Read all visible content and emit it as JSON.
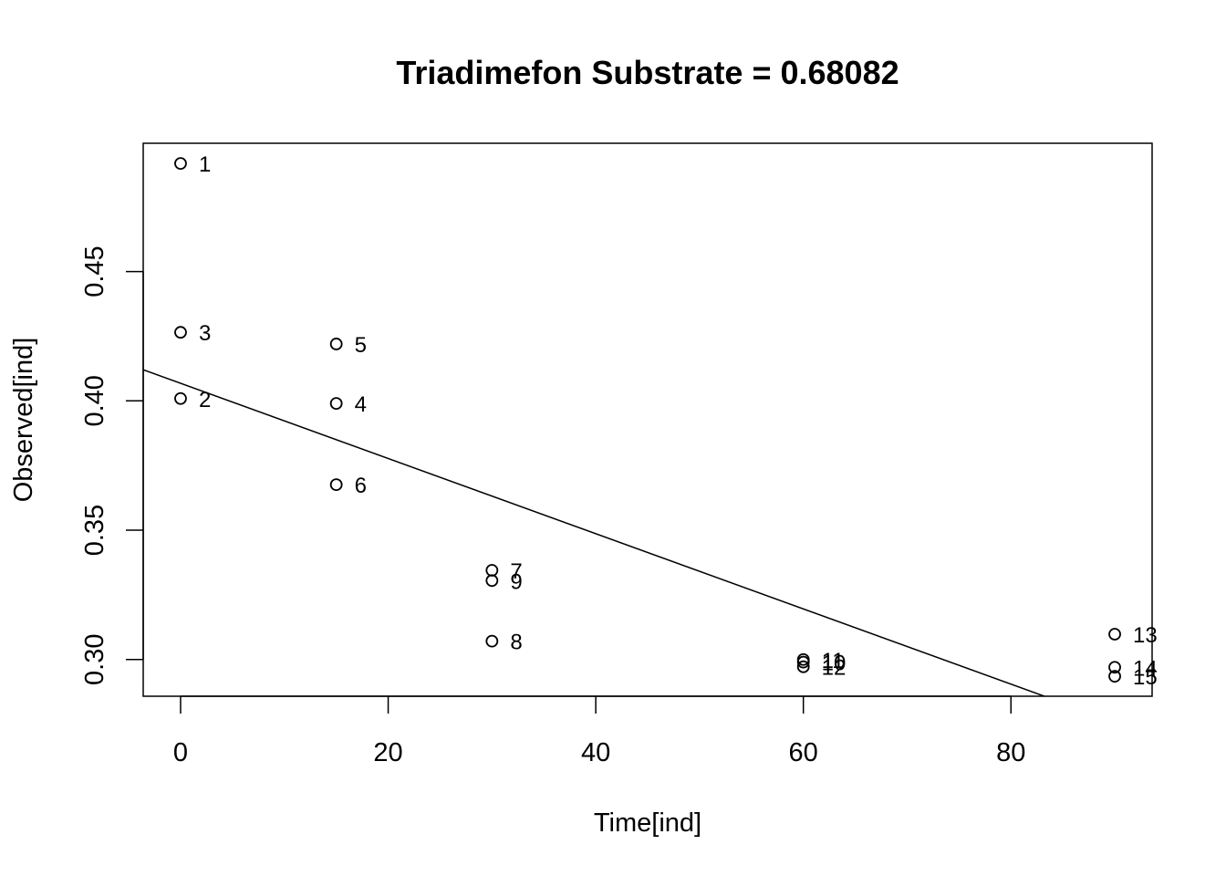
{
  "chart_data": {
    "type": "scatter",
    "title": "Triadimefon Substrate = 0.68082",
    "xlabel": "Time[ind]",
    "ylabel": "Observed[ind]",
    "xlim": [
      -3.6,
      93.6
    ],
    "ylim": [
      0.2858,
      0.4996
    ],
    "x_ticks": [
      "0",
      "20",
      "40",
      "60",
      "80"
    ],
    "y_ticks": [
      "0.30",
      "0.35",
      "0.40",
      "0.45"
    ],
    "grid": false,
    "points": [
      {
        "label": "1",
        "x": 0,
        "y": 0.4918
      },
      {
        "label": "2",
        "x": 0,
        "y": 0.4009
      },
      {
        "label": "3",
        "x": 0,
        "y": 0.4265
      },
      {
        "label": "4",
        "x": 15,
        "y": 0.399
      },
      {
        "label": "5",
        "x": 15,
        "y": 0.422
      },
      {
        "label": "6",
        "x": 15,
        "y": 0.3676
      },
      {
        "label": "7",
        "x": 30,
        "y": 0.3345
      },
      {
        "label": "8",
        "x": 30,
        "y": 0.3071
      },
      {
        "label": "9",
        "x": 30,
        "y": 0.3305
      },
      {
        "label": "10",
        "x": 60,
        "y": 0.299
      },
      {
        "label": "11",
        "x": 60,
        "y": 0.3
      },
      {
        "label": "12",
        "x": 60,
        "y": 0.2972
      },
      {
        "label": "13",
        "x": 90,
        "y": 0.3098
      },
      {
        "label": "14",
        "x": 90,
        "y": 0.297
      },
      {
        "label": "15",
        "x": 90,
        "y": 0.2935
      }
    ],
    "fit_line": {
      "intercept": 0.4068,
      "slope": -0.001454
    }
  }
}
